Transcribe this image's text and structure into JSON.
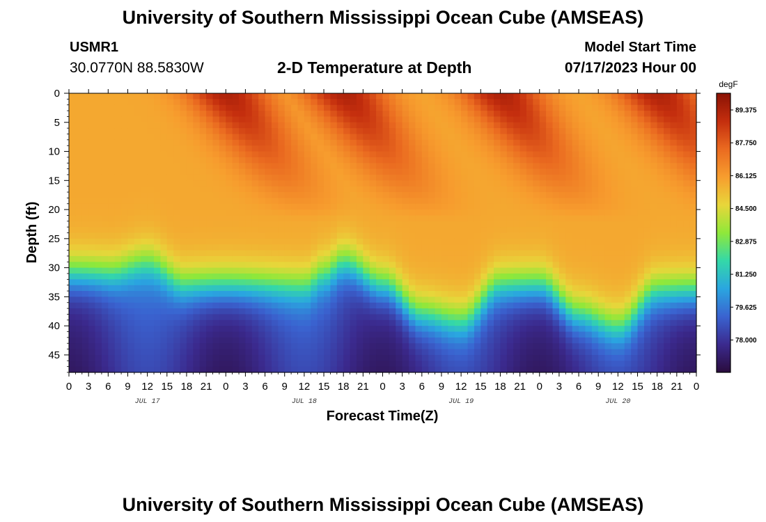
{
  "page": {
    "title": "University of Southern Mississippi Ocean Cube (AMSEAS)",
    "footer_title": "University of Southern Mississippi Ocean Cube (AMSEAS)",
    "station": "USMR1",
    "coordinates": "30.0770N  88.5830W",
    "subtitle": "2-D Temperature at Depth",
    "model_start_label": "Model Start Time",
    "model_start_value": "07/17/2023 Hour 00"
  },
  "chart_data": {
    "type": "heatmap",
    "title": "2-D Temperature at Depth",
    "xlabel": "Forecast Time(Z)",
    "ylabel": "Depth (ft)",
    "x_range_hours": [
      0,
      96
    ],
    "x_tick_labels": [
      "0",
      "3",
      "6",
      "9",
      "12",
      "15",
      "18",
      "21",
      "0",
      "3",
      "6",
      "9",
      "12",
      "15",
      "18",
      "21",
      "0",
      "3",
      "6",
      "9",
      "12",
      "15",
      "18",
      "21",
      "0",
      "3",
      "6",
      "9",
      "12",
      "15",
      "18",
      "21",
      "0"
    ],
    "date_labels": [
      {
        "label": "JUL 17",
        "hour": 12
      },
      {
        "label": "JUL 18",
        "hour": 36
      },
      {
        "label": "JUL 19",
        "hour": 60
      },
      {
        "label": "JUL 20",
        "hour": 84
      }
    ],
    "ylim": [
      0,
      48
    ],
    "y_ticks": [
      0,
      5,
      10,
      15,
      20,
      25,
      30,
      35,
      40,
      45
    ],
    "colorbar": {
      "unit": "degF",
      "min": 76.4,
      "max": 90.2,
      "tick_values": [
        89.375,
        87.75,
        86.125,
        84.5,
        82.875,
        81.25,
        79.625,
        78.0
      ],
      "tick_labels": [
        "89.375",
        "87.750",
        "86.125",
        "84.500",
        "82.875",
        "81.250",
        "79.625",
        "78.000"
      ],
      "colors": [
        "#2a0c3d",
        "#3b2a8e",
        "#3a63d0",
        "#2aa6e0",
        "#34d8a8",
        "#8fe83a",
        "#e8d63a",
        "#f79d2e",
        "#ea6a20",
        "#c42e0e",
        "#8a1204"
      ]
    },
    "thermocline_depth_ft_by_hour": [
      [
        0,
        31
      ],
      [
        6,
        31
      ],
      [
        12,
        29
      ],
      [
        18,
        33
      ],
      [
        24,
        33
      ],
      [
        30,
        33
      ],
      [
        36,
        33
      ],
      [
        39,
        31
      ],
      [
        42,
        29
      ],
      [
        48,
        33
      ],
      [
        54,
        38
      ],
      [
        60,
        39
      ],
      [
        66,
        33
      ],
      [
        72,
        33
      ],
      [
        78,
        38
      ],
      [
        84,
        40
      ],
      [
        90,
        34
      ],
      [
        96,
        34
      ]
    ],
    "surface_warm_max_hours": [
      24,
      42,
      66,
      90
    ],
    "surface_temp_range_degF": [
      85.4,
      89.4
    ],
    "bottom_temp_range_degF": [
      77.0,
      79.6
    ]
  }
}
